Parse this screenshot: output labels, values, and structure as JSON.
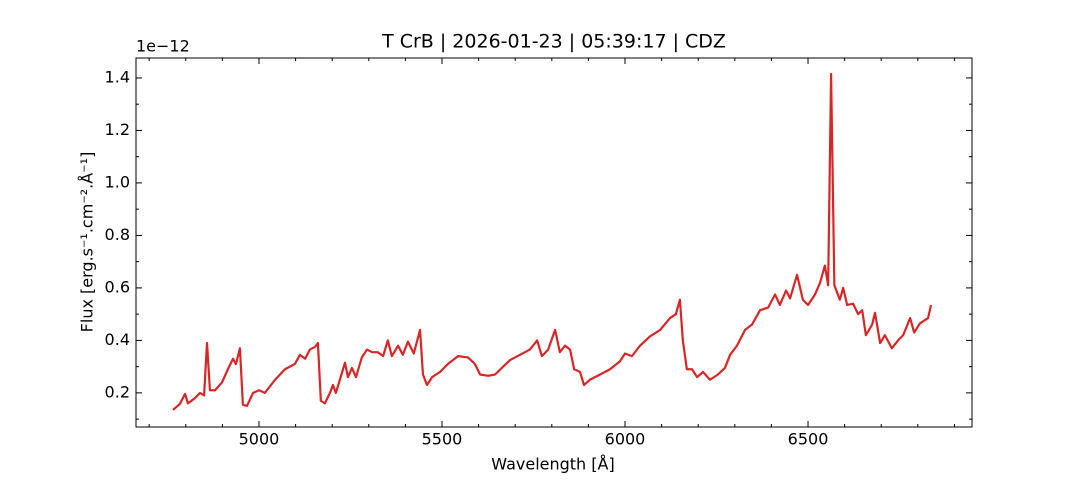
{
  "chart_data": {
    "type": "line",
    "title": "T CrB | 2026-01-23 | 05:39:17 | CDZ",
    "offset_text": "1e−12",
    "xlabel": "Wavelength [Å]",
    "ylabel": "Flux [erg.s⁻¹.cm⁻².Å⁻¹]",
    "color": "#d62728",
    "xlim": [
      4664,
      6948
    ],
    "ylim": [
      0.07,
      1.476
    ],
    "xticks": [
      5000,
      5500,
      6000,
      6500
    ],
    "yticks": [
      0.2,
      0.4,
      0.6,
      0.8,
      {
        "value": 1,
        "label": "1.0"
      },
      1.2,
      1.4
    ],
    "xminorticks": [
      4700,
      4800,
      4900,
      5100,
      5200,
      5300,
      5400,
      5600,
      5700,
      5800,
      5900,
      6100,
      6200,
      6300,
      6400,
      6600,
      6700,
      6800,
      6900
    ],
    "yminorticks": [
      0.1,
      0.3,
      0.5,
      0.7,
      0.9,
      1.1,
      1.3
    ],
    "x": [
      4765,
      4784,
      4798,
      4806,
      4825,
      4839,
      4850,
      4858,
      4866,
      4880,
      4899,
      4915,
      4929,
      4937,
      4948,
      4956,
      4967,
      4984,
      5000,
      5016,
      5044,
      5071,
      5098,
      5112,
      5126,
      5139,
      5153,
      5161,
      5169,
      5180,
      5194,
      5202,
      5210,
      5221,
      5235,
      5243,
      5254,
      5265,
      5281,
      5295,
      5309,
      5325,
      5339,
      5352,
      5363,
      5380,
      5393,
      5407,
      5423,
      5440,
      5448,
      5459,
      5473,
      5495,
      5516,
      5544,
      5571,
      5590,
      5604,
      5626,
      5645,
      5667,
      5686,
      5713,
      5740,
      5760,
      5773,
      5790,
      5809,
      5822,
      5836,
      5850,
      5861,
      5877,
      5888,
      5904,
      5932,
      5959,
      5986,
      6000,
      6019,
      6041,
      6068,
      6096,
      6123,
      6139,
      6150,
      6158,
      6169,
      6183,
      6197,
      6213,
      6232,
      6254,
      6273,
      6287,
      6306,
      6328,
      6347,
      6369,
      6391,
      6410,
      6423,
      6440,
      6451,
      6470,
      6486,
      6500,
      6519,
      6533,
      6546,
      6555,
      6563,
      6572,
      6587,
      6596,
      6607,
      6623,
      6637,
      6648,
      6658,
      6675,
      6683,
      6697,
      6710,
      6729,
      6746,
      6760,
      6779,
      6790,
      6806,
      6828,
      6836
    ],
    "values": [
      0.135,
      0.158,
      0.196,
      0.16,
      0.18,
      0.2,
      0.19,
      0.39,
      0.21,
      0.21,
      0.24,
      0.29,
      0.33,
      0.31,
      0.37,
      0.155,
      0.15,
      0.2,
      0.21,
      0.2,
      0.25,
      0.29,
      0.31,
      0.345,
      0.33,
      0.365,
      0.375,
      0.39,
      0.17,
      0.16,
      0.2,
      0.23,
      0.2,
      0.25,
      0.315,
      0.26,
      0.295,
      0.26,
      0.335,
      0.365,
      0.355,
      0.355,
      0.34,
      0.4,
      0.34,
      0.38,
      0.345,
      0.395,
      0.35,
      0.44,
      0.27,
      0.23,
      0.26,
      0.28,
      0.31,
      0.34,
      0.335,
      0.31,
      0.27,
      0.265,
      0.27,
      0.3,
      0.325,
      0.345,
      0.365,
      0.4,
      0.34,
      0.365,
      0.44,
      0.355,
      0.38,
      0.365,
      0.29,
      0.28,
      0.23,
      0.25,
      0.27,
      0.29,
      0.32,
      0.35,
      0.34,
      0.38,
      0.415,
      0.44,
      0.485,
      0.5,
      0.555,
      0.4,
      0.29,
      0.29,
      0.26,
      0.28,
      0.25,
      0.27,
      0.295,
      0.345,
      0.38,
      0.44,
      0.46,
      0.515,
      0.525,
      0.575,
      0.535,
      0.59,
      0.56,
      0.65,
      0.555,
      0.535,
      0.575,
      0.62,
      0.685,
      0.61,
      1.415,
      0.61,
      0.555,
      0.6,
      0.535,
      0.54,
      0.5,
      0.515,
      0.42,
      0.46,
      0.505,
      0.39,
      0.42,
      0.37,
      0.4,
      0.42,
      0.485,
      0.43,
      0.465,
      0.485,
      0.535
    ]
  }
}
